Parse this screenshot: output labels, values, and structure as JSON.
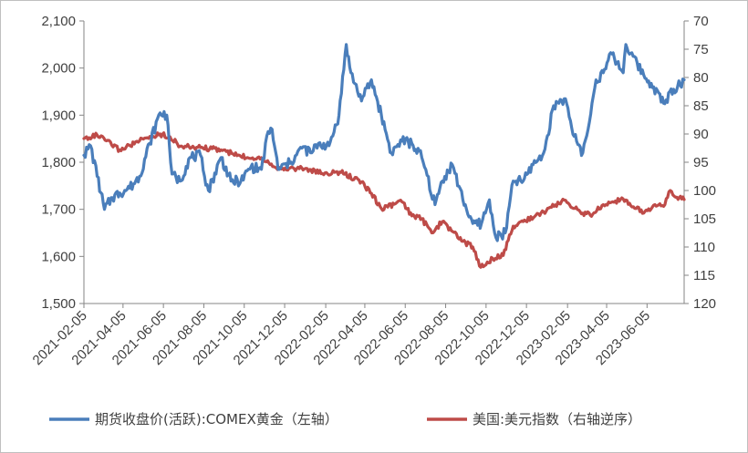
{
  "chart_data": {
    "type": "line",
    "title": "",
    "xlabel": "",
    "ylabel": "",
    "x_range": [
      "2021-02-05",
      "2023-07-31"
    ],
    "x_ticks": [
      "2021-02-05",
      "2021-04-05",
      "2021-06-05",
      "2021-08-05",
      "2021-10-05",
      "2021-12-05",
      "2022-02-05",
      "2022-04-05",
      "2022-06-05",
      "2022-08-05",
      "2022-10-05",
      "2022-12-05",
      "2023-02-05",
      "2023-04-05",
      "2023-06-05"
    ],
    "y_left": {
      "range": [
        1500,
        2100
      ],
      "ticks": [
        "1,500",
        "1,600",
        "1,700",
        "1,800",
        "1,900",
        "2,000",
        "2,100"
      ]
    },
    "y_right": {
      "range": [
        70,
        120
      ],
      "reversed": true,
      "ticks": [
        "70",
        "75",
        "80",
        "85",
        "90",
        "95",
        "100",
        "105",
        "110",
        "115",
        "120"
      ]
    },
    "grid": false,
    "legend_position": "bottom",
    "series": [
      {
        "name": "期货收盘价(活跃):COMEX黄金（左轴）",
        "axis": "left",
        "color": "#4a7ebb",
        "x": [
          "2021-02-05",
          "2021-02-15",
          "2021-02-25",
          "2021-03-08",
          "2021-03-20",
          "2021-03-31",
          "2021-04-15",
          "2021-04-30",
          "2021-05-15",
          "2021-05-31",
          "2021-06-10",
          "2021-06-18",
          "2021-06-30",
          "2021-07-15",
          "2021-07-31",
          "2021-08-06",
          "2021-08-12",
          "2021-08-31",
          "2021-09-15",
          "2021-09-30",
          "2021-10-15",
          "2021-10-31",
          "2021-11-10",
          "2021-11-16",
          "2021-11-25",
          "2021-12-15",
          "2021-12-31",
          "2022-01-15",
          "2022-01-25",
          "2022-02-10",
          "2022-02-25",
          "2022-03-08",
          "2022-03-15",
          "2022-03-31",
          "2022-04-15",
          "2022-04-30",
          "2022-05-15",
          "2022-05-31",
          "2022-06-15",
          "2022-06-30",
          "2022-07-20",
          "2022-07-31",
          "2022-08-15",
          "2022-08-31",
          "2022-09-15",
          "2022-09-28",
          "2022-10-10",
          "2022-10-20",
          "2022-11-03",
          "2022-11-15",
          "2022-11-30",
          "2022-12-15",
          "2022-12-31",
          "2023-01-15",
          "2023-01-31",
          "2023-02-15",
          "2023-02-28",
          "2023-03-08",
          "2023-03-20",
          "2023-03-31",
          "2023-04-13",
          "2023-04-30",
          "2023-05-04",
          "2023-05-15",
          "2023-05-31",
          "2023-06-15",
          "2023-06-30",
          "2023-07-15",
          "2023-07-31"
        ],
        "values": [
          1815,
          1835,
          1770,
          1700,
          1725,
          1735,
          1745,
          1770,
          1840,
          1905,
          1900,
          1775,
          1760,
          1810,
          1815,
          1770,
          1740,
          1810,
          1760,
          1760,
          1790,
          1785,
          1865,
          1870,
          1785,
          1800,
          1830,
          1820,
          1840,
          1835,
          1900,
          2050,
          1990,
          1930,
          1975,
          1900,
          1820,
          1845,
          1840,
          1810,
          1710,
          1760,
          1795,
          1720,
          1670,
          1670,
          1720,
          1640,
          1650,
          1760,
          1760,
          1795,
          1820,
          1920,
          1935,
          1855,
          1820,
          1870,
          1975,
          1990,
          2030,
          1990,
          2050,
          2025,
          1985,
          1960,
          1925,
          1955,
          1975
        ]
      },
      {
        "name": "美国:美元指数（右轴逆序）",
        "axis": "right",
        "color": "#be4b48",
        "x": [
          "2021-02-05",
          "2021-02-25",
          "2021-03-31",
          "2021-04-30",
          "2021-05-31",
          "2021-06-15",
          "2021-06-30",
          "2021-07-31",
          "2021-08-31",
          "2021-09-30",
          "2021-10-31",
          "2021-11-15",
          "2021-11-30",
          "2021-12-31",
          "2022-01-31",
          "2022-02-28",
          "2022-03-31",
          "2022-04-15",
          "2022-04-30",
          "2022-05-31",
          "2022-06-15",
          "2022-06-30",
          "2022-07-15",
          "2022-07-31",
          "2022-08-31",
          "2022-09-15",
          "2022-09-27",
          "2022-10-15",
          "2022-10-31",
          "2022-11-15",
          "2022-11-30",
          "2022-12-31",
          "2023-01-31",
          "2023-02-28",
          "2023-03-15",
          "2023-03-31",
          "2023-04-30",
          "2023-05-31",
          "2023-06-15",
          "2023-06-30",
          "2023-07-10",
          "2023-07-20",
          "2023-07-31"
        ],
        "values": [
          90.8,
          90.2,
          92.8,
          91.2,
          90.0,
          90.5,
          92.2,
          92.4,
          92.8,
          94.0,
          94.2,
          95.3,
          96.2,
          96.0,
          97.0,
          96.8,
          98.5,
          100.5,
          103.2,
          102.0,
          104.5,
          105.0,
          107.5,
          105.5,
          109.0,
          110.0,
          113.6,
          112.0,
          111.5,
          106.3,
          105.5,
          103.8,
          101.7,
          104.0,
          104.2,
          102.5,
          101.5,
          104.0,
          102.6,
          102.8,
          100.0,
          101.2,
          101.6
        ]
      }
    ]
  }
}
